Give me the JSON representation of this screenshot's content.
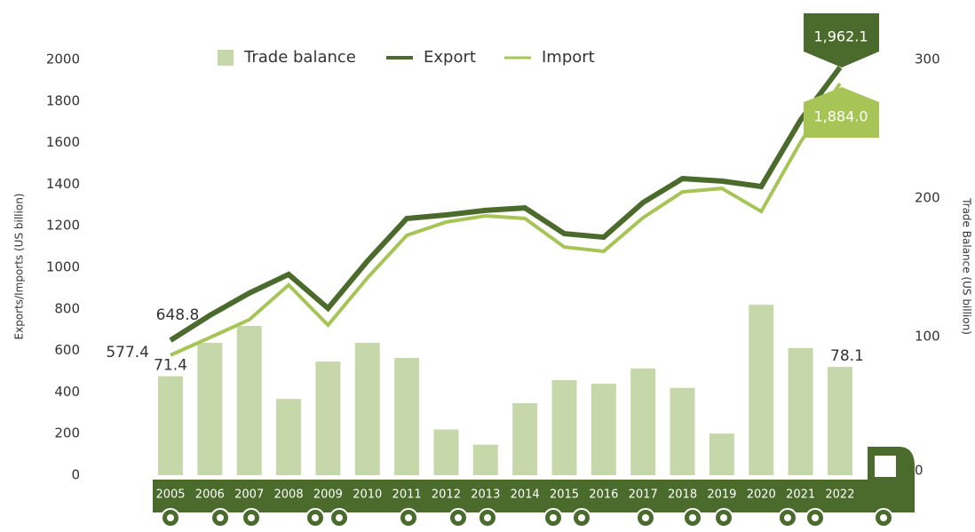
{
  "chart_data": {
    "type": "bar-line",
    "y_label": "Exports/Imports (US billion)",
    "y2_label": "Trade Balance (US billion)",
    "categories": [
      "2005",
      "2006",
      "2007",
      "2008",
      "2009",
      "2010",
      "2011",
      "2012",
      "2013",
      "2014",
      "2015",
      "2016",
      "2017",
      "2018",
      "2019",
      "2020",
      "2021",
      "2022"
    ],
    "series": [
      {
        "name": "Trade balance",
        "type": "bar",
        "axis": "y2",
        "color": "#c6d8a9",
        "values": [
          71.4,
          95.5,
          107.7,
          55,
          82,
          95.5,
          84.6,
          33,
          22,
          52,
          68.6,
          66,
          77,
          63,
          30,
          123,
          91.7,
          78.1
        ],
        "value_labels": [
          "71.4",
          null,
          null,
          null,
          null,
          null,
          null,
          null,
          null,
          null,
          null,
          null,
          null,
          null,
          null,
          null,
          null,
          "78.1"
        ]
      },
      {
        "name": "Export",
        "type": "line",
        "color": "#4b6b2d",
        "values": [
          648.8,
          769,
          876,
          966,
          803,
          1030,
          1235,
          1252,
          1274,
          1286,
          1162,
          1145,
          1312,
          1427,
          1415,
          1389,
          1709,
          1962.1
        ],
        "value_labels": [
          "648.8",
          null,
          null,
          null,
          null,
          null,
          null,
          null,
          null,
          null,
          null,
          null,
          null,
          null,
          null,
          null,
          null,
          "1,962.1"
        ]
      },
      {
        "name": "Import",
        "type": "line",
        "color": "#a7c457",
        "values": [
          577.4,
          662,
          748,
          915,
          722,
          949,
          1154,
          1218,
          1248,
          1235,
          1098,
          1077,
          1239,
          1363,
          1380,
          1269,
          1603,
          1884.0
        ],
        "value_labels": [
          "577.4",
          null,
          null,
          null,
          null,
          null,
          null,
          null,
          null,
          null,
          null,
          null,
          null,
          null,
          null,
          null,
          null,
          "1,884.0"
        ]
      }
    ],
    "ylim": [
      0,
      2000
    ],
    "yticks": [
      0,
      200,
      400,
      600,
      800,
      1000,
      1200,
      1400,
      1600,
      1800,
      2000
    ],
    "y2lim": [
      0,
      300
    ],
    "y2ticks": [
      0,
      100,
      200,
      300
    ],
    "grid": false,
    "legend": "top"
  }
}
